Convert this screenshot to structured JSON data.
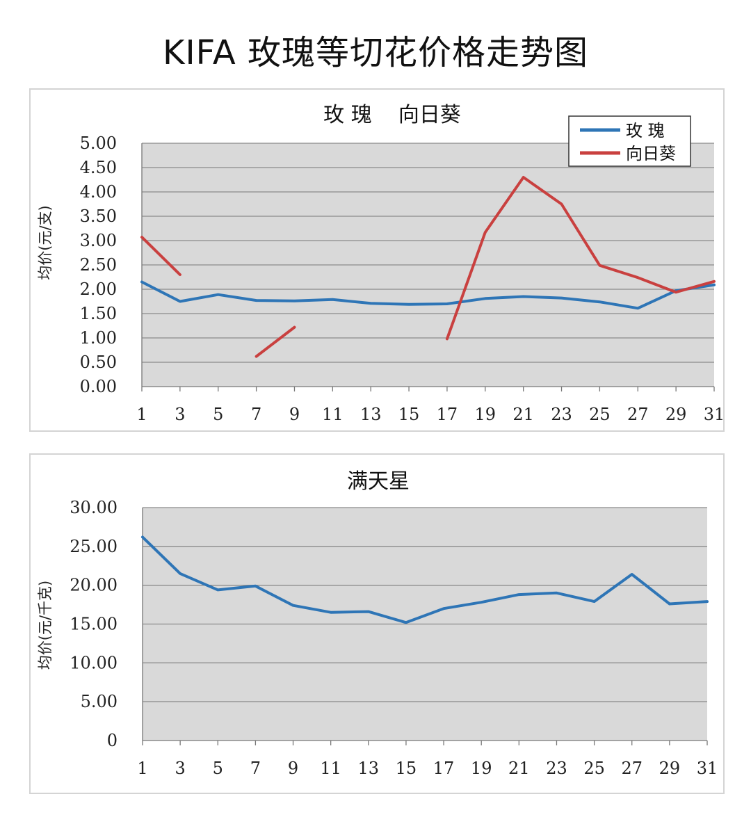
{
  "page": {
    "title": "KIFA 玫瑰等切花价格走势图"
  },
  "colors": {
    "rose": "#2e75b6",
    "sunflower": "#c9403f",
    "plot_bg": "#d9d9d9",
    "grid": "#8c8c8c"
  },
  "chart_data": [
    {
      "type": "line",
      "title": "玫 瑰    向日葵",
      "ylabel": "均价(元/支)",
      "xlabel": "",
      "ylim": [
        0,
        5
      ],
      "yticks": [
        "0.00",
        "0.50",
        "1.00",
        "1.50",
        "2.00",
        "2.50",
        "3.00",
        "3.50",
        "4.00",
        "4.50",
        "5.00"
      ],
      "xticks": [
        "1",
        "3",
        "5",
        "7",
        "9",
        "11",
        "13",
        "15",
        "17",
        "19",
        "21",
        "23",
        "25",
        "27",
        "29",
        "31"
      ],
      "legend": {
        "placement": "top-right",
        "entries": [
          "玫 瑰",
          "向日葵"
        ]
      },
      "series": [
        {
          "name": "玫 瑰",
          "color": "#2e75b6",
          "x": [
            1,
            3,
            5,
            7,
            9,
            11,
            13,
            15,
            17,
            19,
            21,
            23,
            25,
            27,
            29,
            31
          ],
          "y": [
            2.15,
            1.75,
            1.89,
            1.77,
            1.76,
            1.79,
            1.71,
            1.69,
            1.7,
            1.81,
            1.85,
            1.82,
            1.74,
            1.61,
            1.97,
            2.09
          ]
        },
        {
          "name": "向日葵",
          "color": "#c9403f",
          "segments": [
            {
              "x": [
                1,
                3
              ],
              "y": [
                3.07,
                2.3
              ]
            },
            {
              "x": [
                7,
                9
              ],
              "y": [
                0.62,
                1.22
              ]
            },
            {
              "x": [
                17,
                19,
                21,
                23,
                25,
                27,
                29,
                31
              ],
              "y": [
                0.98,
                3.17,
                4.3,
                3.75,
                2.49,
                2.24,
                1.94,
                2.16
              ]
            }
          ]
        }
      ]
    },
    {
      "type": "line",
      "title": "满天星",
      "ylabel": "均价(元/千克)",
      "xlabel": "",
      "ylim": [
        0,
        30
      ],
      "yticks": [
        "0",
        "5.00",
        "10.00",
        "15.00",
        "20.00",
        "25.00",
        "30.00"
      ],
      "xticks": [
        "1",
        "3",
        "5",
        "7",
        "9",
        "11",
        "13",
        "15",
        "17",
        "19",
        "21",
        "23",
        "25",
        "27",
        "29",
        "31"
      ],
      "series": [
        {
          "color": "#2e75b6",
          "x": [
            1,
            3,
            5,
            7,
            9,
            11,
            13,
            15,
            17,
            19,
            21,
            23,
            25,
            27,
            29,
            31
          ],
          "y": [
            26.2,
            21.5,
            19.4,
            19.9,
            17.4,
            16.5,
            16.6,
            15.2,
            17.0,
            17.8,
            18.8,
            19.0,
            17.9,
            21.4,
            17.6,
            17.9
          ]
        }
      ]
    }
  ]
}
